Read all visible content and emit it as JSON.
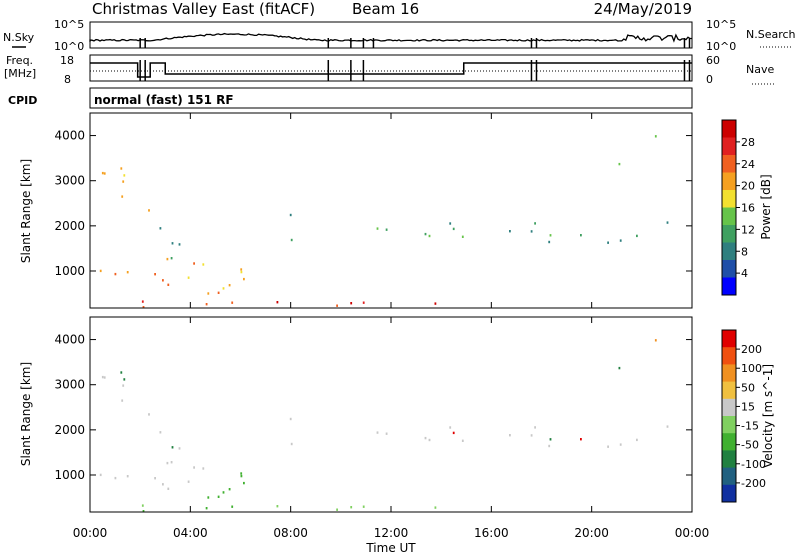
{
  "header": {
    "title": "Christmas Valley East (fitACF)",
    "beam": "Beam 16",
    "date": "24/May/2019"
  },
  "noise_panel": {
    "left_label": "N.Sky",
    "right_label": "N.Search",
    "ticks_left": [
      "10^5",
      "10^0"
    ],
    "ticks_right": [
      "10^5",
      "10^0"
    ]
  },
  "freq_panel": {
    "left_label_1": "Freq.",
    "left_label_2": "[MHz]",
    "right_label": "Nave",
    "ticks_left": [
      "18",
      "8"
    ],
    "ticks_right": [
      "60",
      "0"
    ]
  },
  "cpid": {
    "label": "CPID",
    "value": "normal (fast) 151 RF"
  },
  "x_axis": {
    "title": "Time UT",
    "ticks": [
      "00:00",
      "04:00",
      "08:00",
      "12:00",
      "16:00",
      "20:00",
      "00:00"
    ]
  },
  "chart_data": [
    {
      "type": "heatmap",
      "title": "",
      "ylabel": "Slant Range [km]",
      "xlabel": "Time UT",
      "xlim": [
        0,
        24
      ],
      "ylim": [
        180,
        4500
      ],
      "yticks": [
        "4000",
        "3000",
        "2000",
        "1000"
      ],
      "colorbar_label": "Power [dB]",
      "colorbar_ticks": [
        "28",
        "24",
        "20",
        "16",
        "12",
        "8",
        "4"
      ],
      "colorscale": [
        "#0000ff",
        "#1f4fa8",
        "#2f7f7f",
        "#3fa060",
        "#66c44a",
        "#f2e030",
        "#f5a020",
        "#f06020",
        "#e02020",
        "#cc0000"
      ]
    },
    {
      "type": "heatmap",
      "title": "",
      "ylabel": "Slant Range [km]",
      "xlabel": "Time UT",
      "xlim": [
        0,
        24
      ],
      "ylim": [
        180,
        4500
      ],
      "yticks": [
        "4000",
        "3000",
        "2000",
        "1000"
      ],
      "colorbar_label": "Velocity [m s^-1]",
      "colorbar_ticks": [
        "200",
        "100",
        "50",
        "15",
        "-15",
        "-50",
        "-100",
        "-200"
      ],
      "colorscale": [
        "#1030a0",
        "#206080",
        "#208040",
        "#40b030",
        "#80d060",
        "#c8c8c8",
        "#f0c040",
        "#f09020",
        "#f05010",
        "#e00000"
      ]
    }
  ]
}
